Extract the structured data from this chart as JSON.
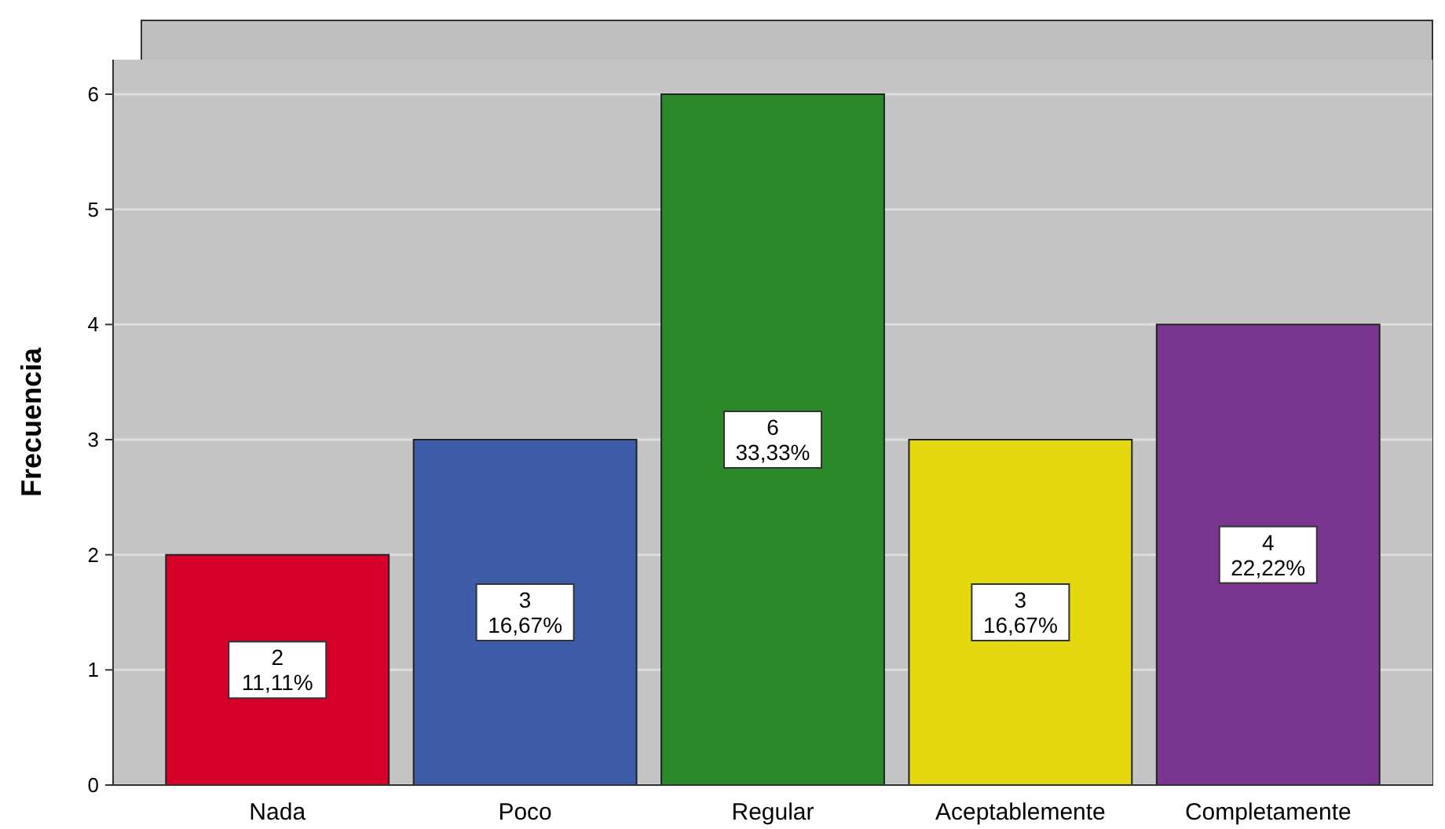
{
  "chart_data": {
    "type": "bar",
    "ylabel": "Frecuencia",
    "categories": [
      "Nada",
      "Poco",
      "Regular",
      "Aceptablemente",
      "Completamente"
    ],
    "values": [
      2,
      3,
      6,
      3,
      4
    ],
    "colors": [
      "#d6002a",
      "#3f5ca8",
      "#2a8a2a",
      "#e4d80f",
      "#7a3590"
    ],
    "value_labels": [
      "2\n11,11%",
      "3\n16,67%",
      "6\n33,33%",
      "3\n16,67%",
      "4\n22,22%"
    ],
    "ylim": [
      0,
      6.3
    ],
    "yticks": [
      0,
      1,
      2,
      3,
      4,
      5,
      6
    ],
    "grid": "y"
  }
}
